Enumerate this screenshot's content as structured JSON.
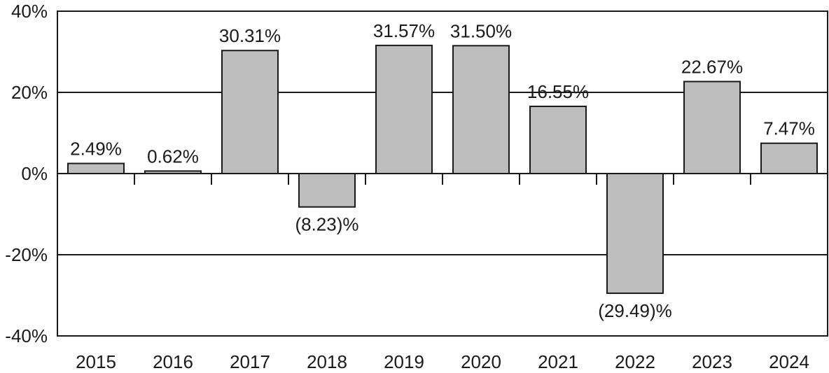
{
  "chart_data": {
    "type": "bar",
    "title": "",
    "xlabel": "",
    "ylabel": "",
    "categories": [
      "2015",
      "2016",
      "2017",
      "2018",
      "2019",
      "2020",
      "2021",
      "2022",
      "2023",
      "2024"
    ],
    "values": [
      2.49,
      0.62,
      30.31,
      -8.23,
      31.57,
      31.5,
      16.55,
      -29.49,
      22.67,
      7.47
    ],
    "value_labels": [
      "2.49%",
      "0.62%",
      "30.31%",
      "(8.23)%",
      "31.57%",
      "31.50%",
      "16.55%",
      "(29.49)%",
      "22.67%",
      "7.47%"
    ],
    "ylim": [
      -40,
      40
    ],
    "yticks": [
      40,
      20,
      0,
      -20,
      -40
    ],
    "ytick_labels": [
      "40%",
      "20%",
      "0%",
      "-20%",
      "-40%"
    ],
    "grid": true,
    "legend": "none",
    "colors": {
      "bar_fill": "#bdbdbd",
      "bar_stroke": "#1a1a1a",
      "axis": "#1a1a1a",
      "gridline": "#1a1a1a"
    }
  }
}
